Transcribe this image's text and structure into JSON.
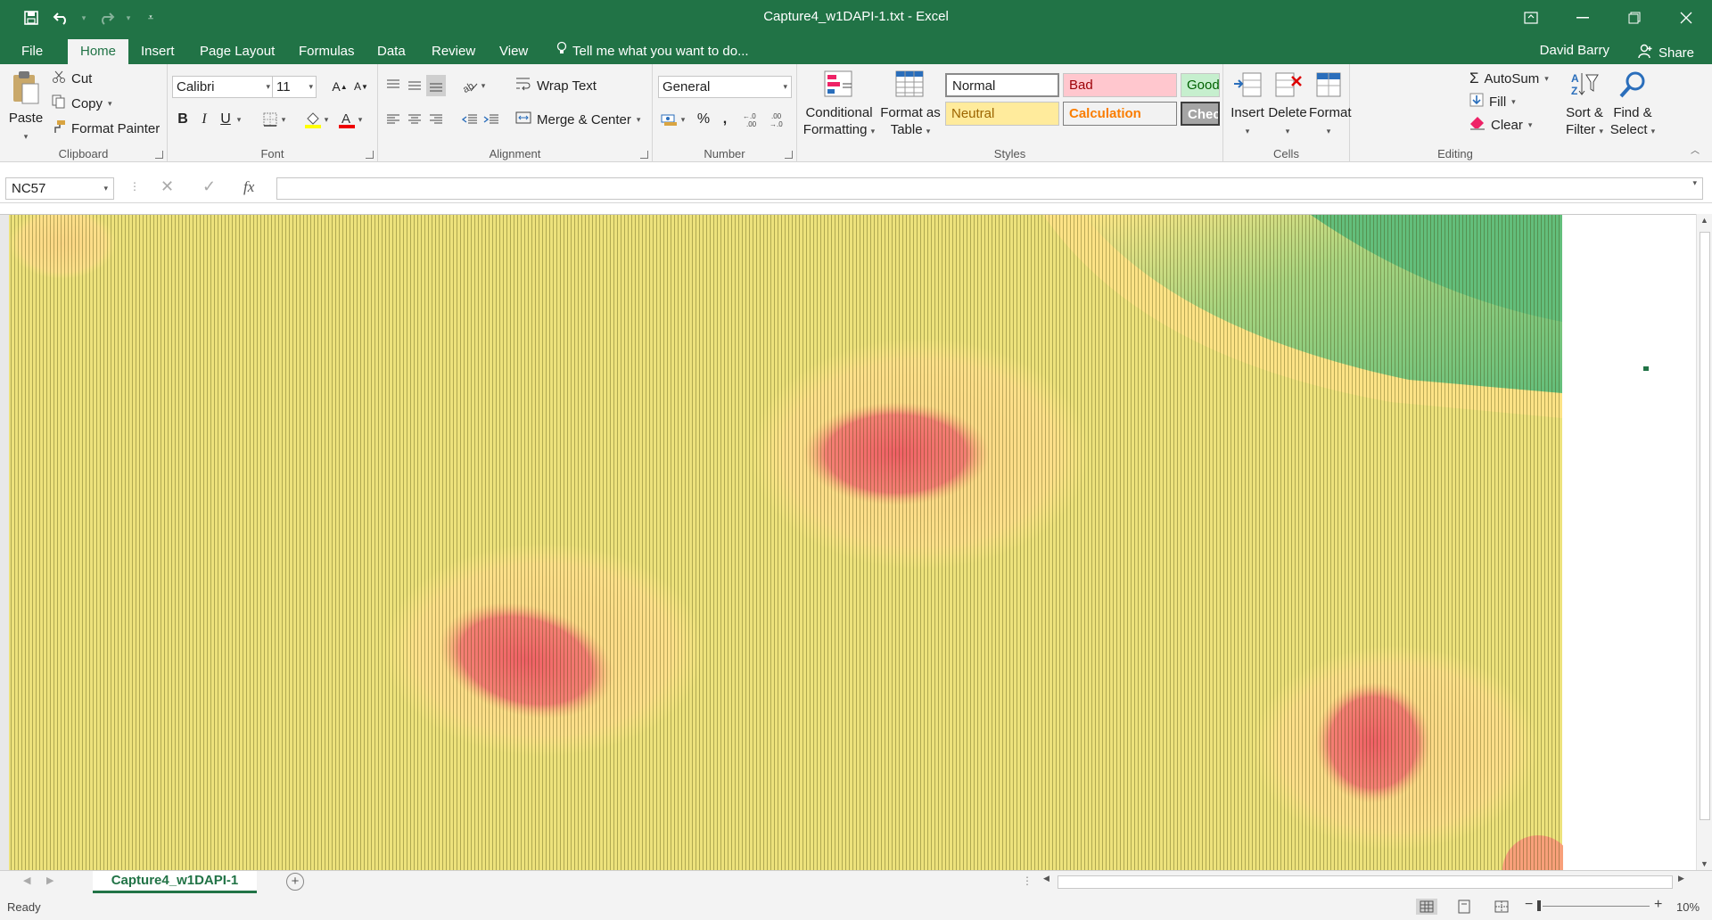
{
  "window": {
    "title": "Capture4_w1DAPI-1.txt - Excel"
  },
  "menu": {
    "file": "File",
    "home": "Home",
    "insert": "Insert",
    "page_layout": "Page Layout",
    "formulas": "Formulas",
    "data": "Data",
    "review": "Review",
    "view": "View",
    "tell_me": "Tell me what you want to do...",
    "user": "David Barry",
    "share": "Share"
  },
  "ribbon": {
    "clipboard": {
      "paste": "Paste",
      "cut": "Cut",
      "copy": "Copy",
      "format_painter": "Format Painter",
      "label": "Clipboard"
    },
    "font": {
      "name": "Calibri",
      "size": "11",
      "bold": "B",
      "italic": "I",
      "underline": "U",
      "label": "Font"
    },
    "alignment": {
      "wrap_text": "Wrap Text",
      "merge_center": "Merge & Center",
      "label": "Alignment"
    },
    "number": {
      "format": "General",
      "percent": "%",
      "comma": ",",
      "label": "Number"
    },
    "styles": {
      "conditional_formatting_1": "Conditional",
      "conditional_formatting_2": "Formatting",
      "format_as_table_1": "Format as",
      "format_as_table_2": "Table",
      "cells": {
        "normal": "Normal",
        "bad": "Bad",
        "good": "Good",
        "neutral": "Neutral",
        "calculation": "Calculation",
        "check_cell": "Check Cell"
      },
      "label": "Styles"
    },
    "cells": {
      "insert": "Insert",
      "delete": "Delete",
      "format": "Format",
      "label": "Cells"
    },
    "editing": {
      "autosum": "AutoSum",
      "fill": "Fill",
      "clear": "Clear",
      "sort_filter_1": "Sort &",
      "sort_filter_2": "Filter",
      "find_select_1": "Find &",
      "find_select_2": "Select",
      "label": "Editing"
    }
  },
  "formula_bar": {
    "name_box": "NC57",
    "fx": "fx",
    "content": ""
  },
  "sheet": {
    "tab": "Capture4_w1DAPI-1"
  },
  "status": {
    "ready": "Ready",
    "zoom": "10%"
  },
  "colors": {
    "excel_green": "#217346",
    "heat_low": "#63be7b",
    "heat_mid": "#ffeb84",
    "heat_high": "#f8696b"
  }
}
